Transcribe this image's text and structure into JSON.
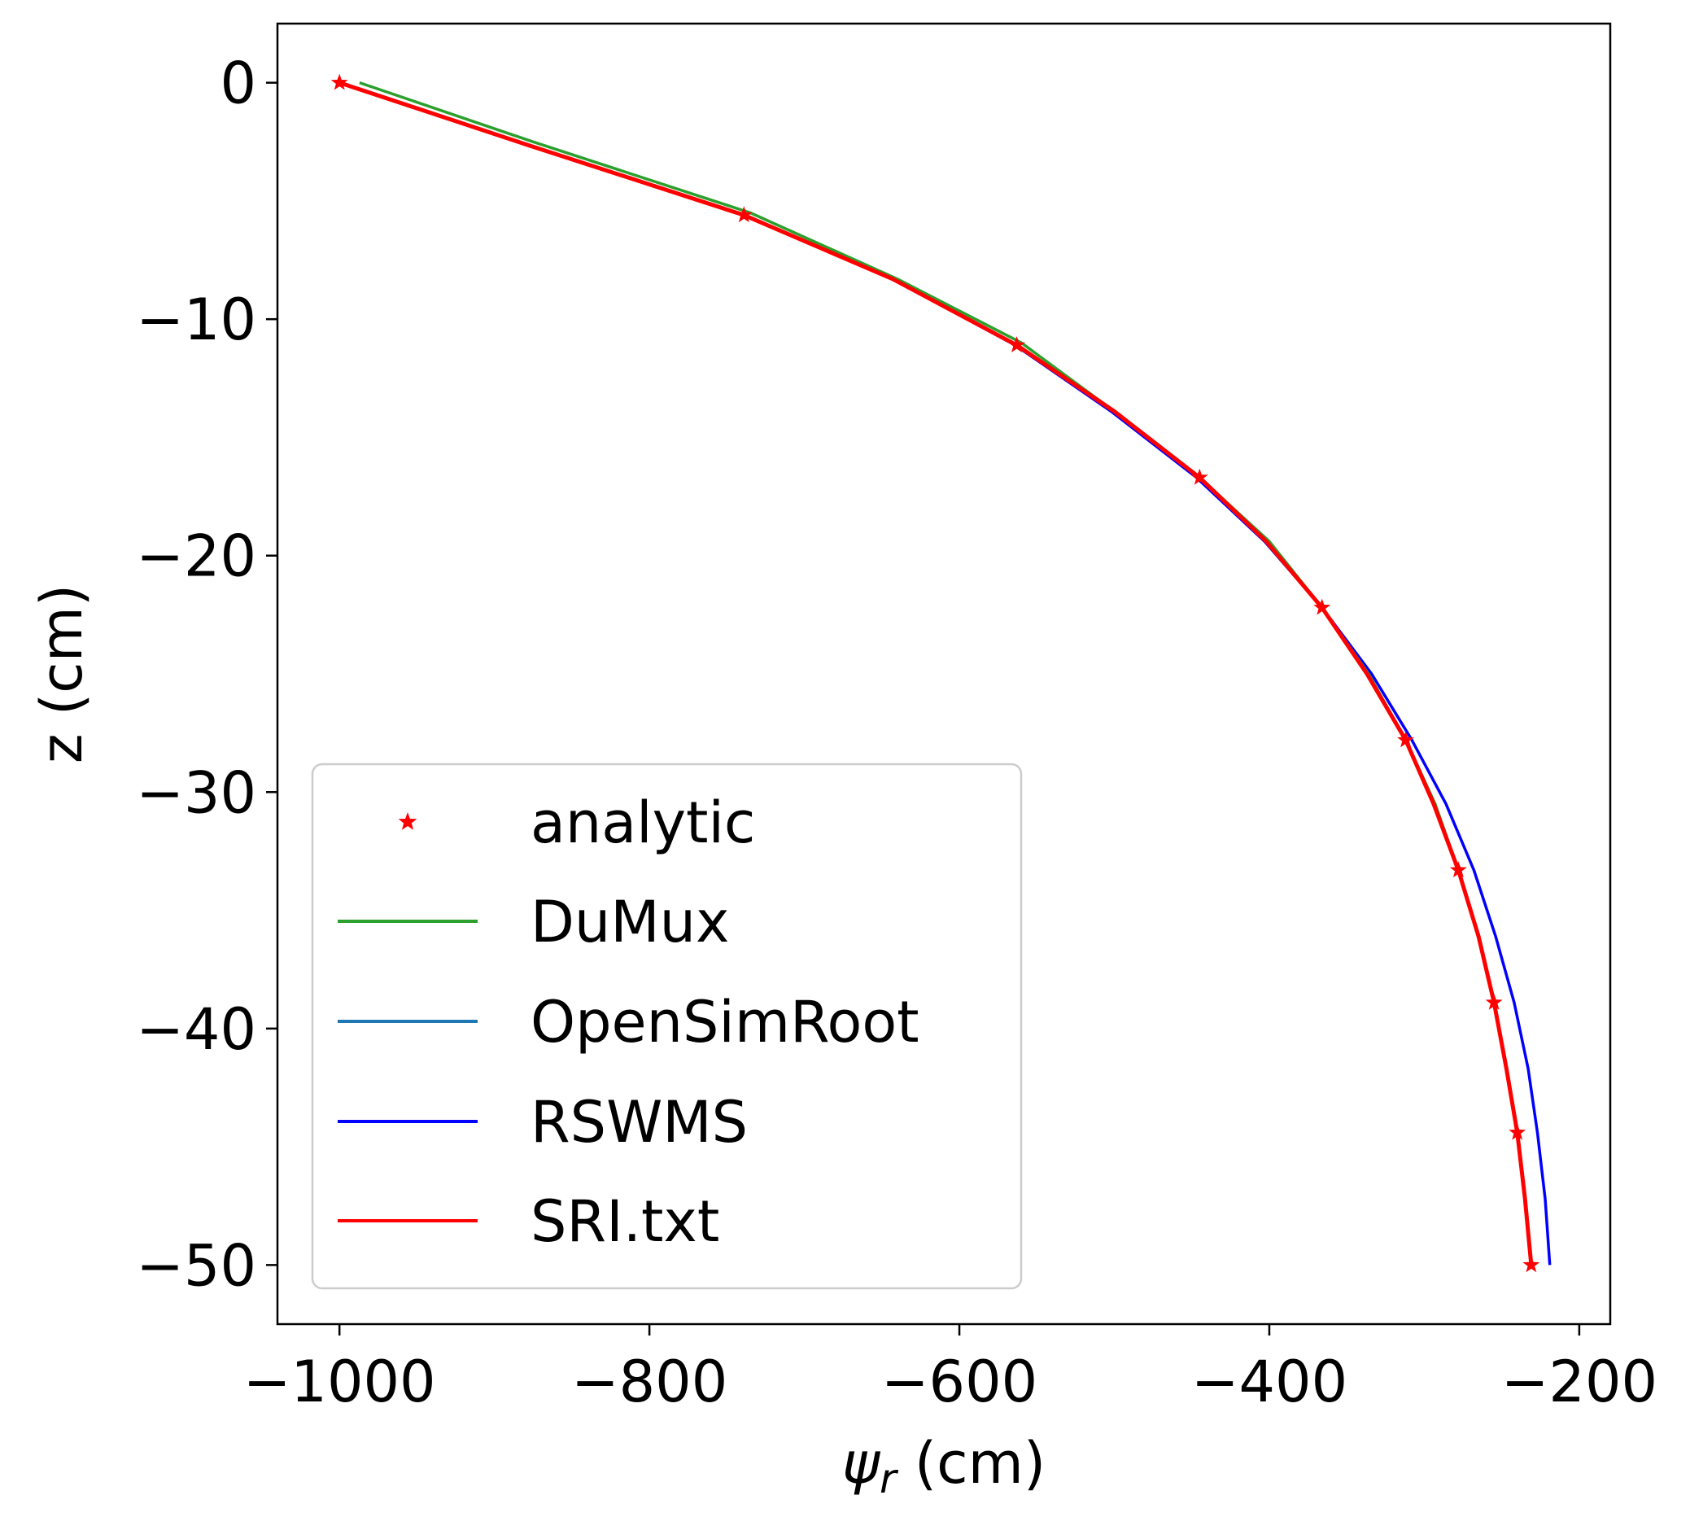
{
  "chart_data": {
    "type": "line",
    "title": "",
    "xlabel_main": "ψ",
    "xlabel_sub": "r",
    "xlabel_unit": " (cm)",
    "ylabel": "z (cm)",
    "xlim": [
      -1040,
      -180
    ],
    "ylim": [
      -52.5,
      2.5
    ],
    "x_ticks": [
      -1000,
      -800,
      -600,
      -400,
      -200
    ],
    "x_tick_labels": [
      "−1000",
      "−800",
      "−600",
      "−400",
      "−200"
    ],
    "y_ticks": [
      0,
      -10,
      -20,
      -30,
      -40,
      -50
    ],
    "y_tick_labels": [
      "0",
      "−10",
      "−20",
      "−30",
      "−40",
      "−50"
    ],
    "grid": false,
    "legend_position": "lower-left",
    "series": [
      {
        "name": "analytic",
        "style": "marker-star",
        "color": "#ff0000",
        "points": [
          [
            -1000,
            0
          ],
          [
            -739,
            -5.6
          ],
          [
            -563,
            -11.1
          ],
          [
            -445,
            -16.7
          ],
          [
            -366,
            -22.2
          ],
          [
            -312,
            -27.8
          ],
          [
            -278,
            -33.3
          ],
          [
            -255,
            -38.9
          ],
          [
            -240,
            -44.4
          ],
          [
            -231,
            -50
          ]
        ]
      },
      {
        "name": "DuMux",
        "style": "line",
        "color": "#2ca02c",
        "points": [
          [
            -987,
            0
          ],
          [
            -875,
            -2.5
          ],
          [
            -735,
            -5.5
          ],
          [
            -640,
            -8.3
          ],
          [
            -560,
            -11
          ],
          [
            -500,
            -13.9
          ],
          [
            -445,
            -16.7
          ],
          [
            -400,
            -19.4
          ],
          [
            -366,
            -22.2
          ],
          [
            -336,
            -25
          ],
          [
            -312,
            -27.8
          ],
          [
            -293,
            -30.5
          ],
          [
            -278,
            -33.3
          ],
          [
            -265,
            -36.1
          ],
          [
            -255,
            -38.9
          ],
          [
            -247,
            -41.7
          ],
          [
            -240,
            -44.4
          ],
          [
            -235,
            -47.2
          ],
          [
            -231,
            -50
          ]
        ]
      },
      {
        "name": "OpenSimRoot",
        "style": "line",
        "color": "#1f77b4",
        "points": [
          [
            -1000,
            0
          ],
          [
            -880,
            -2.6
          ],
          [
            -739,
            -5.6
          ],
          [
            -643,
            -8.3
          ],
          [
            -563,
            -11.1
          ],
          [
            -500,
            -13.9
          ],
          [
            -445,
            -16.7
          ],
          [
            -402,
            -19.4
          ],
          [
            -366,
            -22.2
          ],
          [
            -337,
            -25
          ],
          [
            -312,
            -27.8
          ],
          [
            -294,
            -30.5
          ],
          [
            -278,
            -33.3
          ],
          [
            -265,
            -36.1
          ],
          [
            -255,
            -38.9
          ],
          [
            -247,
            -41.7
          ],
          [
            -240,
            -44.4
          ],
          [
            -235,
            -47.2
          ],
          [
            -231,
            -50
          ]
        ]
      },
      {
        "name": "RSWMS",
        "style": "line",
        "color": "#0000ff",
        "points": [
          [
            -1000,
            0
          ],
          [
            -880,
            -2.6
          ],
          [
            -739,
            -5.6
          ],
          [
            -643,
            -8.3
          ],
          [
            -564,
            -11.1
          ],
          [
            -502,
            -13.9
          ],
          [
            -447,
            -16.7
          ],
          [
            -403,
            -19.4
          ],
          [
            -366,
            -22.2
          ],
          [
            -334,
            -25
          ],
          [
            -308,
            -27.8
          ],
          [
            -286,
            -30.5
          ],
          [
            -268,
            -33.3
          ],
          [
            -254,
            -36.1
          ],
          [
            -242,
            -38.9
          ],
          [
            -233,
            -41.7
          ],
          [
            -227,
            -44.4
          ],
          [
            -222,
            -47.2
          ],
          [
            -219,
            -50
          ]
        ]
      },
      {
        "name": "SRI.txt",
        "style": "line",
        "color": "#ff0000",
        "points": [
          [
            -1000,
            0
          ],
          [
            -880,
            -2.6
          ],
          [
            -739,
            -5.6
          ],
          [
            -643,
            -8.3
          ],
          [
            -563,
            -11.1
          ],
          [
            -500,
            -13.9
          ],
          [
            -445,
            -16.7
          ],
          [
            -402,
            -19.4
          ],
          [
            -366,
            -22.2
          ],
          [
            -337,
            -25
          ],
          [
            -312,
            -27.8
          ],
          [
            -294,
            -30.5
          ],
          [
            -278,
            -33.3
          ],
          [
            -265,
            -36.1
          ],
          [
            -255,
            -38.9
          ],
          [
            -247,
            -41.7
          ],
          [
            -240,
            -44.4
          ],
          [
            -235,
            -47.2
          ],
          [
            -231,
            -50
          ]
        ]
      }
    ]
  }
}
